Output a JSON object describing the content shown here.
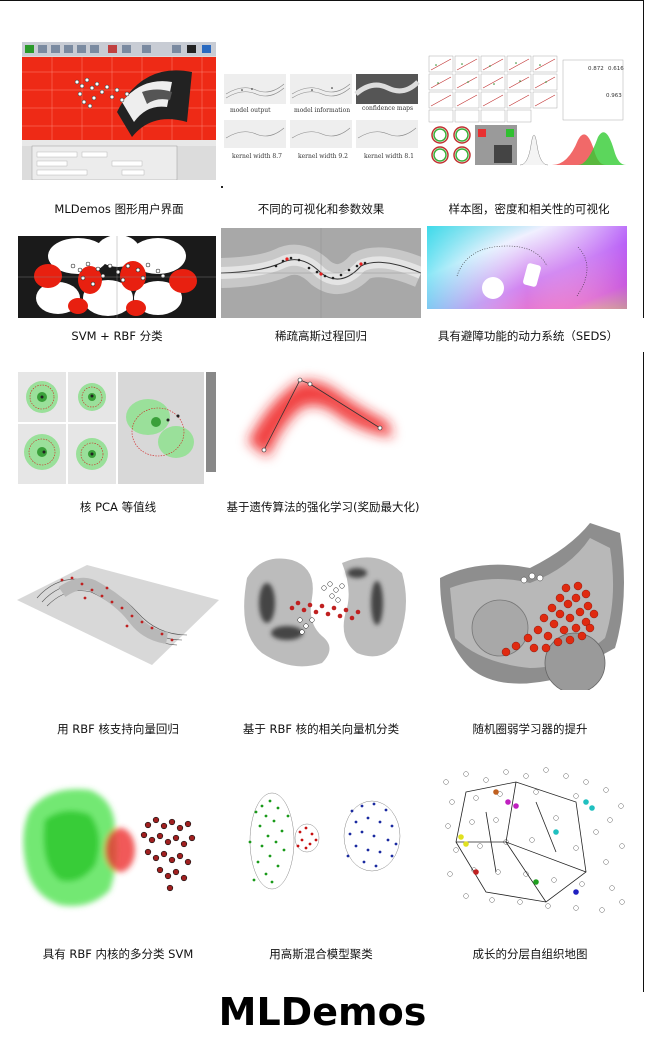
{
  "brand": "MLDemos",
  "row1": {
    "captions": [
      "MLDemos 图形用户界面",
      "不同的可视化和参数效果",
      "样本图，密度和相关性的可视化"
    ],
    "panel_labels": [
      "model output",
      "model information",
      "confidence maps",
      "kernel width 8.7",
      "kernel width 9.2",
      "kernel width 8.1"
    ],
    "corr_values": [
      "0.872",
      "0.616",
      "0.963"
    ]
  },
  "row2": {
    "captions": [
      "SVM + RBF 分类",
      "稀疏高斯过程回归",
      "具有避障功能的动力系统（SEDS）"
    ]
  },
  "row3": {
    "captions": [
      "核 PCA 等值线",
      "基于遗传算法的强化学习(奖励最大化)"
    ]
  },
  "row4": {
    "captions": [
      "用 RBF 核支持向量回归",
      "基于 RBF 核的相关向量机分类",
      "随机圈弱学习器的提升"
    ]
  },
  "row5": {
    "captions": [
      "具有 RBF 内核的多分类 SVM",
      "用高斯混合模型聚类",
      "成长的分层自组织地图"
    ]
  },
  "colors": {
    "red": "#e8281c",
    "green": "#3cd63c",
    "blue": "#1a2a9a",
    "gray": "#9a9a9a"
  }
}
